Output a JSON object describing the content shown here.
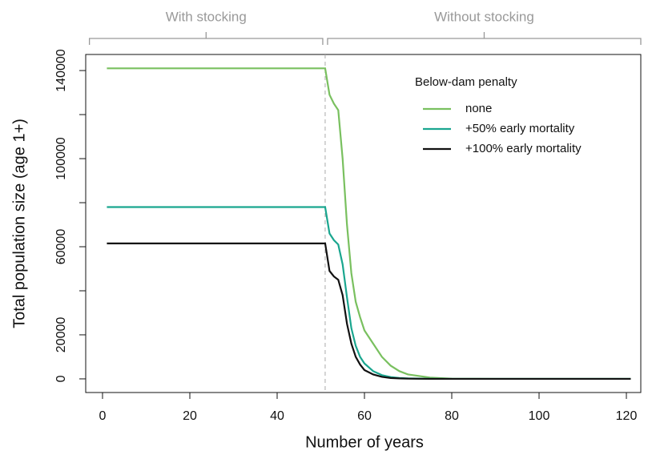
{
  "chart_data": {
    "type": "line",
    "x_label": "Number of years",
    "y_label": "Total population size (age 1+)",
    "x": [
      1,
      51,
      52,
      53,
      54,
      55,
      56,
      57,
      58,
      59,
      60,
      62,
      64,
      66,
      68,
      70,
      75,
      80,
      90,
      100,
      121
    ],
    "series": [
      {
        "name": "none",
        "color": "#79c05f",
        "values": [
          141000,
          141000,
          129000,
          125000,
          122000,
          100000,
          70000,
          48000,
          35000,
          28000,
          22000,
          16000,
          10000,
          6000,
          3500,
          2000,
          600,
          100,
          0,
          0,
          0
        ]
      },
      {
        "name": "+50% early mortality",
        "color": "#1aa68f",
        "values": [
          78000,
          78000,
          66000,
          63000,
          61000,
          52000,
          37000,
          23000,
          15000,
          10000,
          7000,
          3500,
          1700,
          800,
          400,
          200,
          50,
          0,
          0,
          0,
          0
        ]
      },
      {
        "name": "+100% early mortality",
        "color": "#111111",
        "values": [
          61500,
          61500,
          49000,
          46500,
          45000,
          38000,
          25000,
          16000,
          10000,
          6500,
          4000,
          2000,
          900,
          400,
          200,
          100,
          0,
          0,
          0,
          0,
          0
        ]
      }
    ],
    "xlim": [
      -3.85,
      123.3
    ],
    "ylim": [
      -6200,
      147300
    ],
    "xticks": [
      0,
      20,
      40,
      60,
      80,
      100,
      120
    ],
    "yticks": [
      0,
      20000,
      60000,
      100000,
      140000
    ],
    "yticks_minor": [
      40000,
      80000,
      120000
    ],
    "legend": {
      "title": "Below-dam penalty",
      "loc": "upper right"
    },
    "vline": 51,
    "spans": [
      {
        "label": "With stocking",
        "start": -3,
        "end": 51
      },
      {
        "label": "Without stocking",
        "start": 51,
        "end": 123.3
      }
    ]
  }
}
